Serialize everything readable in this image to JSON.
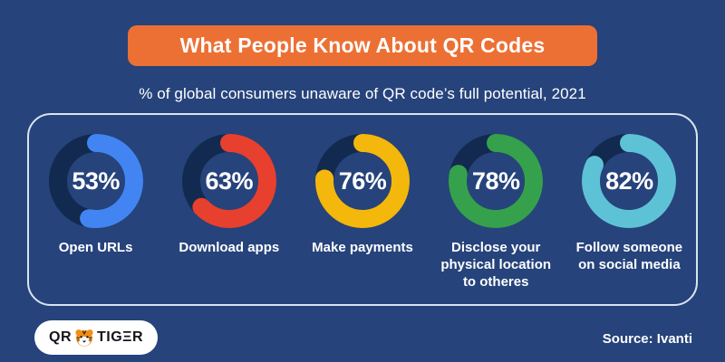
{
  "page": {
    "background": "#26437b",
    "panel_border": "#d9e4f1",
    "track_color": "#122a4f",
    "text_color": "#ffffff"
  },
  "header": {
    "title": "What People Know About QR Codes",
    "banner_color": "#ec7034",
    "subtitle": "% of global consumers unaware of QR code’s full potential, 2021"
  },
  "chart_data": {
    "type": "pie",
    "variant": "donut-gauge-multiples",
    "title": "What People Know About QR Codes",
    "subtitle": "% of global consumers unaware of QR code’s full potential, 2021",
    "categories": [
      "Open URLs",
      "Download apps",
      "Make payments",
      "Disclose your physical location to otheres",
      "Follow someone on social media"
    ],
    "values": [
      53,
      63,
      76,
      78,
      82
    ],
    "unit": "%",
    "colors": [
      "#4285f2",
      "#e7402f",
      "#f4b70b",
      "#35a14c",
      "#5ec2d6"
    ],
    "track_color": "#122a4f",
    "start_angle": "top",
    "direction": "clockwise",
    "source": "Source: Ivanti"
  },
  "charts": [
    {
      "percent": "53%",
      "value": 53,
      "label": "Open URLs",
      "color": "#4285f2"
    },
    {
      "percent": "63%",
      "value": 63,
      "label": "Download apps",
      "color": "#e7402f"
    },
    {
      "percent": "76%",
      "value": 76,
      "label": "Make payments",
      "color": "#f4b70b"
    },
    {
      "percent": "78%",
      "value": 78,
      "label": "Disclose your physical location to otheres",
      "color": "#35a14c"
    },
    {
      "percent": "82%",
      "value": 82,
      "label": "Follow someone on social media",
      "color": "#5ec2d6"
    }
  ],
  "footer": {
    "logo_qr": "QR",
    "logo_tiger": "TIGΞR",
    "source": "Source: Ivanti"
  }
}
